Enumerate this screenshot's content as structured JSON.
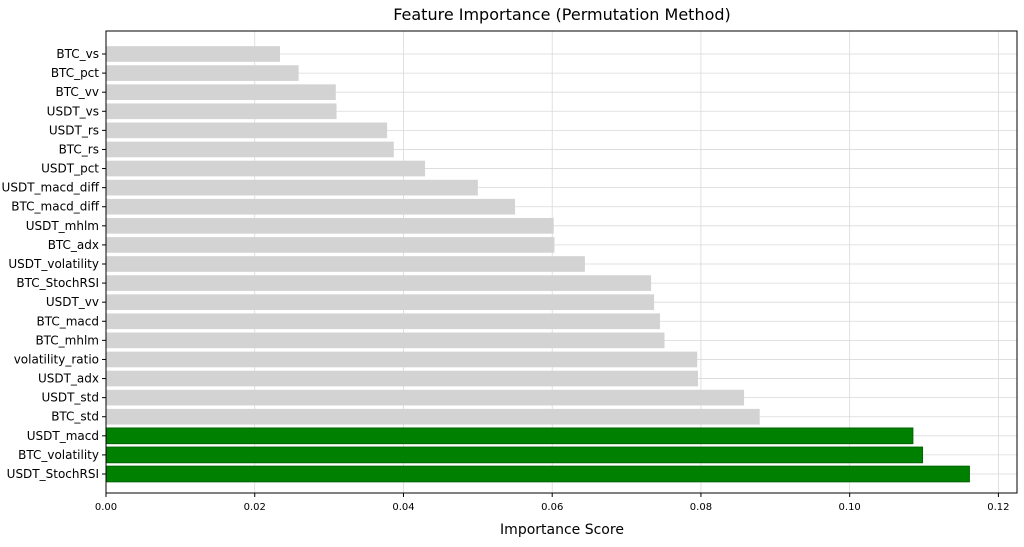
{
  "chart_data": {
    "type": "bar",
    "orientation": "horizontal",
    "title": "Feature Importance (Permutation Method)",
    "xlabel": "Importance Score",
    "ylabel": "",
    "xlim": [
      0,
      0.1225
    ],
    "xticks": [
      0.0,
      0.02,
      0.04,
      0.06,
      0.08,
      0.1,
      0.12
    ],
    "xtick_labels": [
      "0.00",
      "0.02",
      "0.04",
      "0.06",
      "0.08",
      "0.10",
      "0.12"
    ],
    "grid": true,
    "categories": [
      "BTC_vs",
      "BTC_pct",
      "BTC_vv",
      "USDT_vs",
      "USDT_rs",
      "BTC_rs",
      "USDT_pct",
      "USDT_macd_diff",
      "BTC_macd_diff",
      "USDT_mhlm",
      "BTC_adx",
      "USDT_volatility",
      "BTC_StochRSI",
      "USDT_vv",
      "BTC_macd",
      "BTC_mhlm",
      "volatility_ratio",
      "USDT_adx",
      "USDT_std",
      "BTC_std",
      "USDT_macd",
      "BTC_volatility",
      "USDT_StochRSI"
    ],
    "values": [
      0.0234,
      0.0259,
      0.0309,
      0.031,
      0.0378,
      0.0387,
      0.0429,
      0.05,
      0.055,
      0.0602,
      0.0603,
      0.0644,
      0.0733,
      0.0737,
      0.0745,
      0.0751,
      0.0795,
      0.0796,
      0.0858,
      0.0879,
      0.1085,
      0.1098,
      0.1161
    ],
    "highlighted_top_n": 3,
    "colors": {
      "default_bar": "#d3d3d3",
      "highlight_bar": "#008000",
      "highlight_edge": "#006400",
      "grid": "#d9d9d9",
      "frame": "#000000"
    }
  }
}
